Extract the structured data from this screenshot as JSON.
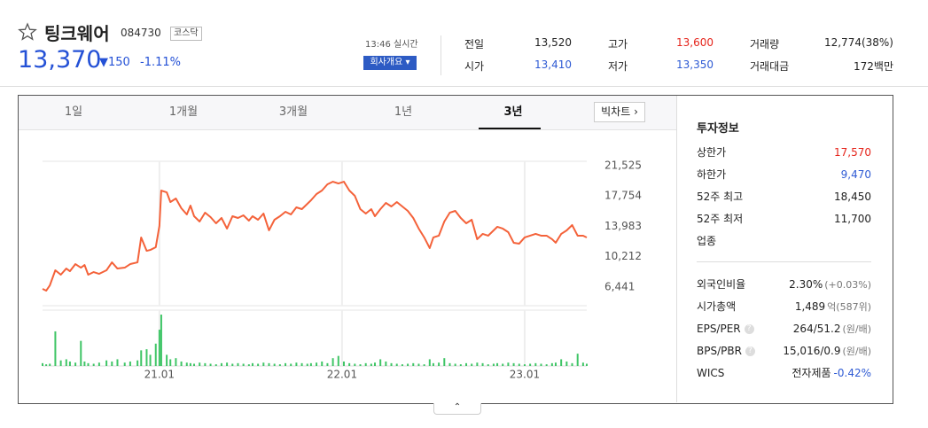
{
  "header": {
    "name": "팅크웨어",
    "code": "084730",
    "market": "코스닥",
    "price": "13,370",
    "change": "150",
    "change_rate": "-1.11%",
    "time": "13:46 실시간",
    "company_button": "회사개요"
  },
  "quote": {
    "rows": [
      [
        {
          "label": "전일",
          "value": "13,520"
        },
        {
          "label": "고가",
          "value": "13,600",
          "color": "#e5241b"
        },
        {
          "label": "거래량",
          "value": "12,774(38%)"
        }
      ],
      [
        {
          "label": "시가",
          "value": "13,410",
          "color": "#2f5bd4"
        },
        {
          "label": "저가",
          "value": "13,350",
          "color": "#2f5bd4"
        },
        {
          "label": "거래대금",
          "value": "172백만"
        }
      ]
    ]
  },
  "tabs": {
    "items": [
      "1일",
      "1개월",
      "3개월",
      "1년",
      "3년"
    ],
    "selected": 4,
    "big_chart": "빅차트"
  },
  "invest": {
    "title": "투자정보",
    "rows": [
      {
        "label": "상한가",
        "value": "17,570",
        "color": "#e5241b"
      },
      {
        "label": "하한가",
        "value": "9,470",
        "color": "#2f5bd4"
      },
      {
        "label": "52주 최고",
        "value": "18,450"
      },
      {
        "label": "52주 최저",
        "value": "11,700"
      },
      {
        "label": "업종"
      }
    ],
    "rows2": [
      {
        "label": "외국인비율",
        "value": "2.30%",
        "extra": "(+0.03%)"
      },
      {
        "label": "시가총액",
        "value": "1,489",
        "extra": "억(587위)"
      },
      {
        "label": "EPS/PER",
        "value": "264/51.2",
        "extra": "(원/배)",
        "help": "?"
      },
      {
        "label": "BPS/PBR",
        "value": "15,016/0.9",
        "extra": "(원/배)",
        "help": "?"
      },
      {
        "label": "WICS",
        "value": "전자제품",
        "extra": "-0.42%",
        "extra_color": "#2f5bd4"
      }
    ]
  },
  "chart_data": {
    "type": "line",
    "x": [
      2020.36,
      2020.38,
      2020.4,
      2020.43,
      2020.46,
      2020.49,
      2020.51,
      2020.54,
      2020.57,
      2020.59,
      2020.61,
      2020.64,
      2020.67,
      2020.71,
      2020.74,
      2020.77,
      2020.81,
      2020.84,
      2020.88,
      2020.9,
      2020.93,
      2020.95,
      2020.98,
      2021.0,
      2021.01,
      2021.04,
      2021.06,
      2021.09,
      2021.12,
      2021.15,
      2021.17,
      2021.19,
      2021.22,
      2021.25,
      2021.28,
      2021.31,
      2021.34,
      2021.37,
      2021.4,
      2021.43,
      2021.46,
      2021.49,
      2021.51,
      2021.54,
      2021.57,
      2021.6,
      2021.63,
      2021.66,
      2021.69,
      2021.72,
      2021.75,
      2021.78,
      2021.81,
      2021.83,
      2021.86,
      2021.89,
      2021.92,
      2021.95,
      2021.98,
      2022.01,
      2022.04,
      2022.07,
      2022.1,
      2022.13,
      2022.16,
      2022.18,
      2022.21,
      2022.24,
      2022.27,
      2022.3,
      2022.33,
      2022.36,
      2022.39,
      2022.42,
      2022.45,
      2022.48,
      2022.5,
      2022.53,
      2022.56,
      2022.59,
      2022.62,
      2022.65,
      2022.68,
      2022.71,
      2022.74,
      2022.77,
      2022.8,
      2022.83,
      2022.85,
      2022.88,
      2022.91,
      2022.94,
      2022.97,
      2023.0,
      2023.03,
      2023.06,
      2023.09,
      2023.12,
      2023.15,
      2023.17,
      2023.2,
      2023.23,
      2023.26,
      2023.29,
      2023.32,
      2023.34
    ],
    "series": [
      {
        "color": "#f4623a",
        "values": [
          6220,
          6000,
          6660,
          8530,
          7980,
          8750,
          8420,
          9300,
          8860,
          9190,
          7980,
          8310,
          8090,
          8530,
          9520,
          8750,
          8860,
          9300,
          9520,
          12610,
          10950,
          11060,
          11400,
          14040,
          18440,
          18220,
          17010,
          17450,
          16240,
          15470,
          16570,
          15250,
          14590,
          15690,
          15140,
          14370,
          15030,
          13710,
          15250,
          15030,
          15360,
          14700,
          15250,
          14810,
          15580,
          13490,
          14810,
          15250,
          15800,
          15470,
          16350,
          16130,
          16790,
          17230,
          18000,
          18440,
          19210,
          19540,
          19320,
          19540,
          18440,
          17780,
          16130,
          15580,
          16130,
          15250,
          16130,
          16900,
          16460,
          17010,
          16460,
          15910,
          15030,
          13710,
          12610,
          11290,
          12610,
          12830,
          14590,
          15690,
          15910,
          15030,
          14370,
          14810,
          12390,
          13050,
          12830,
          13490,
          13930,
          13710,
          13270,
          11950,
          11840,
          12610,
          12830,
          13050,
          12830,
          12830,
          12390,
          11950,
          13050,
          13490,
          14150,
          12830,
          12830,
          12610
        ]
      }
    ],
    "volume": {
      "color": "#3fc566",
      "ylim": [
        0,
        100
      ],
      "values": [
        5,
        3,
        4,
        62,
        10,
        12,
        8,
        6,
        45,
        8,
        5,
        4,
        6,
        10,
        8,
        12,
        6,
        8,
        10,
        28,
        30,
        20,
        40,
        65,
        92,
        20,
        12,
        14,
        8,
        6,
        5,
        4,
        6,
        5,
        4,
        3,
        5,
        6,
        4,
        5,
        4,
        3,
        5,
        4,
        6,
        5,
        4,
        3,
        5,
        4,
        6,
        5,
        4,
        5,
        6,
        8,
        5,
        14,
        18,
        8,
        5,
        4,
        3,
        5,
        4,
        6,
        12,
        8,
        5,
        4,
        3,
        4,
        5,
        4,
        3,
        12,
        5,
        6,
        14,
        5,
        4,
        3,
        5,
        4,
        6,
        5,
        3,
        4,
        5,
        4,
        6,
        5,
        4,
        3,
        4,
        5,
        4,
        3,
        5,
        6,
        12,
        8,
        5,
        22,
        6,
        4
      ]
    },
    "xlim": [
      2020.36,
      2023.34
    ],
    "xticks": [
      {
        "value": 2021,
        "label": "21.01"
      },
      {
        "value": 2022,
        "label": "22.01"
      },
      {
        "value": 2023,
        "label": "23.01"
      }
    ],
    "ylim": [
      4129,
      22075
    ],
    "yticks": [
      {
        "value": 21525,
        "label": "21,525"
      },
      {
        "value": 17754,
        "label": "17,754"
      },
      {
        "value": 13983,
        "label": "13,983"
      },
      {
        "value": 10212,
        "label": "10,212"
      },
      {
        "value": 6441,
        "label": "6,441"
      }
    ],
    "grid": true
  }
}
